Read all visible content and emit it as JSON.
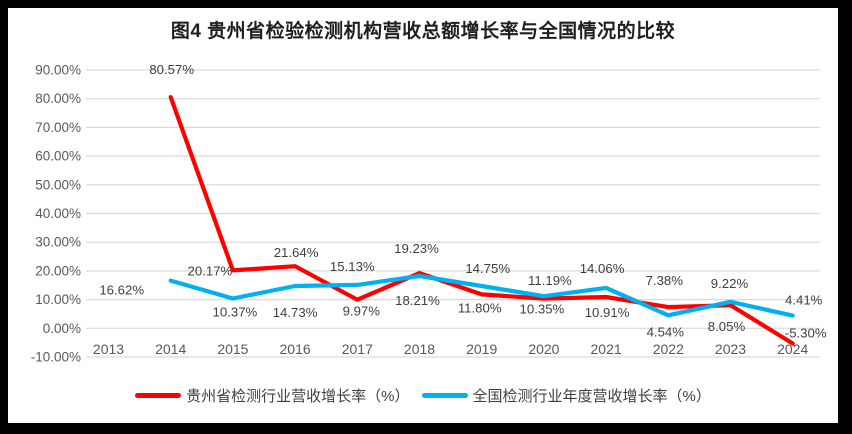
{
  "title": "图4 贵州省检验检测机构营收总额增长率与全国情况的比较",
  "chart_data": {
    "type": "line",
    "title": "图4 贵州省检验检测机构营收总额增长率与全国情况的比较",
    "categories": [
      "2013",
      "2014",
      "2015",
      "2016",
      "2017",
      "2018",
      "2019",
      "2020",
      "2021",
      "2022",
      "2023",
      "2024"
    ],
    "y_axis": {
      "min": -10,
      "max": 90,
      "step": 10,
      "tick_labels": [
        "90.00%",
        "80.00%",
        "70.00%",
        "60.00%",
        "50.00%",
        "40.00%",
        "30.00%",
        "20.00%",
        "10.00%",
        "0.00%",
        "-10.00%"
      ],
      "format": "percent-2dp"
    },
    "grid": true,
    "legend_position": "bottom",
    "colors": {
      "grid": "#d9d9d9",
      "tick_text": "#595959",
      "label_text": "#3f3f3f"
    },
    "series": [
      {
        "name": "贵州省检测行业营收增长率（%）",
        "color": "#ff0000",
        "values": [
          null,
          80.57,
          20.17,
          21.64,
          9.97,
          19.23,
          11.8,
          10.35,
          10.91,
          7.38,
          8.05,
          -5.3
        ],
        "label_offsets": [
          null,
          [
            1,
            -23
          ],
          [
            -23,
            5
          ],
          [
            1,
            -9
          ],
          [
            4,
            16
          ],
          [
            -3,
            -20
          ],
          [
            -2,
            18
          ],
          [
            -2,
            15
          ],
          [
            1,
            20
          ],
          [
            -4,
            -22
          ],
          [
            -4,
            26
          ],
          [
            13,
            -6
          ]
        ]
      },
      {
        "name": "全国检测行业年度营收增长率（%）",
        "color": "#00b0f0",
        "values": [
          null,
          16.62,
          10.37,
          14.73,
          15.13,
          18.21,
          14.75,
          11.19,
          14.06,
          4.54,
          9.22,
          4.41
        ],
        "label_offsets": [
          null,
          [
            -49,
            14
          ],
          [
            2,
            18
          ],
          [
            0,
            31
          ],
          [
            -5,
            -14
          ],
          [
            -2,
            29
          ],
          [
            6,
            -13
          ],
          [
            6,
            -11
          ],
          [
            -4,
            -15
          ],
          [
            -3,
            21
          ],
          [
            -1,
            -14
          ],
          [
            11,
            -11
          ]
        ]
      }
    ]
  }
}
